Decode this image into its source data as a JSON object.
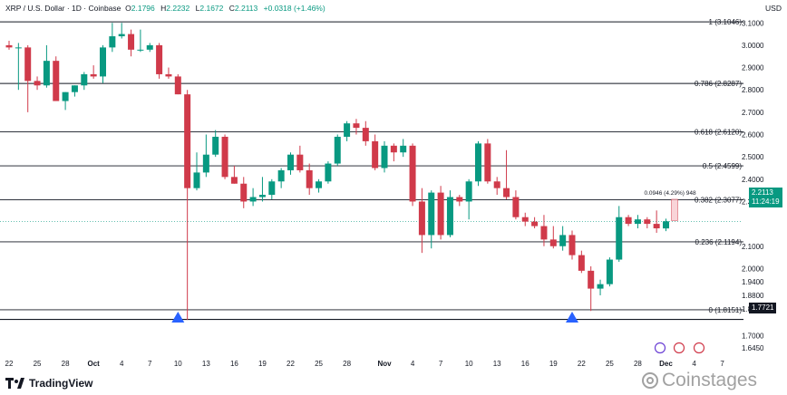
{
  "header": {
    "symbol": "XRP / U.S. Dollar · 1D · Coinbase",
    "open_label": "O",
    "open": "2.1796",
    "high_label": "H",
    "high": "2.2232",
    "low_label": "L",
    "low": "2.1672",
    "close_label": "C",
    "close": "2.2113",
    "change": "+0.0318 (+1.46%)"
  },
  "currency": "USD",
  "brand": "TradingView",
  "watermark": "Coinstages",
  "price_badge": {
    "value": "2.2113",
    "countdown": "11:24:19",
    "color": "#089981"
  },
  "low_badge": "1.7721",
  "measure_label": "0.0946 (4.29%) 948",
  "colors": {
    "up": "#089981",
    "down": "#d03a4a",
    "signal": "#2962ff",
    "fib": "#131722"
  },
  "chart_data": {
    "type": "candlestick",
    "ylim": [
      1.6,
      3.17
    ],
    "price_ticks": [
      "3.1000",
      "3.0000",
      "2.9000",
      "2.8000",
      "2.7000",
      "2.6000",
      "2.5000",
      "2.4000",
      "2.3000",
      "2.1000",
      "2.0000",
      "1.9400",
      "1.8800",
      "1.8200",
      "1.7000",
      "1.6450"
    ],
    "fib_levels": [
      {
        "label": "1 (3.1046)",
        "value": 3.1046
      },
      {
        "label": "0.786 (2.8287)",
        "value": 2.8287
      },
      {
        "label": "0.618 (2.6120)",
        "value": 2.612
      },
      {
        "label": "0.5 (2.4599)",
        "value": 2.4599
      },
      {
        "label": "0.382 (2.3077)",
        "value": 2.3077
      },
      {
        "label": "0.236 (2.1194)",
        "value": 2.1194
      },
      {
        "label": "0 (1.8151)",
        "value": 1.8151
      }
    ],
    "support_line": 1.7721,
    "current_price": 2.2113,
    "x_ticks": [
      {
        "label": "22",
        "index": 0
      },
      {
        "label": "25",
        "index": 3
      },
      {
        "label": "28",
        "index": 6
      },
      {
        "label": "Oct",
        "index": 9
      },
      {
        "label": "4",
        "index": 12
      },
      {
        "label": "7",
        "index": 15
      },
      {
        "label": "10",
        "index": 18
      },
      {
        "label": "13",
        "index": 21
      },
      {
        "label": "16",
        "index": 24
      },
      {
        "label": "19",
        "index": 27
      },
      {
        "label": "22",
        "index": 30
      },
      {
        "label": "25",
        "index": 33
      },
      {
        "label": "28",
        "index": 36
      },
      {
        "label": "Nov",
        "index": 40
      },
      {
        "label": "4",
        "index": 43
      },
      {
        "label": "7",
        "index": 46
      },
      {
        "label": "10",
        "index": 49
      },
      {
        "label": "13",
        "index": 52
      },
      {
        "label": "16",
        "index": 55
      },
      {
        "label": "19",
        "index": 58
      },
      {
        "label": "22",
        "index": 61
      },
      {
        "label": "25",
        "index": 64
      },
      {
        "label": "28",
        "index": 67
      },
      {
        "label": "Dec",
        "index": 70
      },
      {
        "label": "4",
        "index": 73
      },
      {
        "label": "7",
        "index": 76
      }
    ],
    "signals": [
      {
        "index": 18
      },
      {
        "index": 60
      }
    ],
    "candles": [
      {
        "o": 3.0,
        "h": 3.02,
        "l": 2.98,
        "c": 2.99
      },
      {
        "o": 2.99,
        "h": 3.01,
        "l": 2.8,
        "c": 2.99
      },
      {
        "o": 2.99,
        "h": 3.0,
        "l": 2.7,
        "c": 2.84
      },
      {
        "o": 2.84,
        "h": 2.86,
        "l": 2.8,
        "c": 2.82
      },
      {
        "o": 2.82,
        "h": 3.0,
        "l": 2.81,
        "c": 2.93
      },
      {
        "o": 2.93,
        "h": 2.95,
        "l": 2.75,
        "c": 2.75
      },
      {
        "o": 2.75,
        "h": 2.79,
        "l": 2.71,
        "c": 2.79
      },
      {
        "o": 2.79,
        "h": 2.82,
        "l": 2.77,
        "c": 2.82
      },
      {
        "o": 2.82,
        "h": 2.88,
        "l": 2.8,
        "c": 2.87
      },
      {
        "o": 2.87,
        "h": 2.91,
        "l": 2.85,
        "c": 2.86
      },
      {
        "o": 2.86,
        "h": 3.0,
        "l": 2.83,
        "c": 2.99
      },
      {
        "o": 2.99,
        "h": 3.1,
        "l": 2.97,
        "c": 3.04
      },
      {
        "o": 3.04,
        "h": 3.1,
        "l": 3.03,
        "c": 3.05
      },
      {
        "o": 3.05,
        "h": 3.07,
        "l": 2.95,
        "c": 2.98
      },
      {
        "o": 2.98,
        "h": 3.07,
        "l": 2.97,
        "c": 2.98
      },
      {
        "o": 2.98,
        "h": 3.01,
        "l": 2.97,
        "c": 3.0
      },
      {
        "o": 3.0,
        "h": 3.01,
        "l": 2.85,
        "c": 2.87
      },
      {
        "o": 2.87,
        "h": 2.9,
        "l": 2.85,
        "c": 2.86
      },
      {
        "o": 2.86,
        "h": 2.87,
        "l": 2.78,
        "c": 2.78
      },
      {
        "o": 2.78,
        "h": 2.8,
        "l": 1.77,
        "c": 2.36
      },
      {
        "o": 2.36,
        "h": 2.52,
        "l": 2.35,
        "c": 2.43
      },
      {
        "o": 2.43,
        "h": 2.6,
        "l": 2.41,
        "c": 2.51
      },
      {
        "o": 2.51,
        "h": 2.62,
        "l": 2.5,
        "c": 2.59
      },
      {
        "o": 2.59,
        "h": 2.6,
        "l": 2.4,
        "c": 2.41
      },
      {
        "o": 2.41,
        "h": 2.46,
        "l": 2.38,
        "c": 2.38
      },
      {
        "o": 2.38,
        "h": 2.41,
        "l": 2.27,
        "c": 2.3
      },
      {
        "o": 2.3,
        "h": 2.36,
        "l": 2.28,
        "c": 2.32
      },
      {
        "o": 2.32,
        "h": 2.41,
        "l": 2.3,
        "c": 2.33
      },
      {
        "o": 2.33,
        "h": 2.4,
        "l": 2.31,
        "c": 2.39
      },
      {
        "o": 2.39,
        "h": 2.45,
        "l": 2.36,
        "c": 2.44
      },
      {
        "o": 2.44,
        "h": 2.52,
        "l": 2.42,
        "c": 2.51
      },
      {
        "o": 2.51,
        "h": 2.55,
        "l": 2.43,
        "c": 2.44
      },
      {
        "o": 2.44,
        "h": 2.47,
        "l": 2.33,
        "c": 2.36
      },
      {
        "o": 2.36,
        "h": 2.4,
        "l": 2.34,
        "c": 2.39
      },
      {
        "o": 2.39,
        "h": 2.48,
        "l": 2.38,
        "c": 2.47
      },
      {
        "o": 2.47,
        "h": 2.6,
        "l": 2.46,
        "c": 2.59
      },
      {
        "o": 2.59,
        "h": 2.66,
        "l": 2.57,
        "c": 2.65
      },
      {
        "o": 2.65,
        "h": 2.67,
        "l": 2.6,
        "c": 2.63
      },
      {
        "o": 2.63,
        "h": 2.66,
        "l": 2.55,
        "c": 2.57
      },
      {
        "o": 2.57,
        "h": 2.6,
        "l": 2.44,
        "c": 2.45
      },
      {
        "o": 2.45,
        "h": 2.57,
        "l": 2.43,
        "c": 2.55
      },
      {
        "o": 2.55,
        "h": 2.56,
        "l": 2.48,
        "c": 2.52
      },
      {
        "o": 2.52,
        "h": 2.58,
        "l": 2.5,
        "c": 2.55
      },
      {
        "o": 2.55,
        "h": 2.56,
        "l": 2.28,
        "c": 2.3
      },
      {
        "o": 2.3,
        "h": 2.36,
        "l": 2.07,
        "c": 2.15
      },
      {
        "o": 2.15,
        "h": 2.35,
        "l": 2.09,
        "c": 2.34
      },
      {
        "o": 2.34,
        "h": 2.37,
        "l": 2.13,
        "c": 2.15
      },
      {
        "o": 2.15,
        "h": 2.35,
        "l": 2.14,
        "c": 2.32
      },
      {
        "o": 2.32,
        "h": 2.33,
        "l": 2.28,
        "c": 2.3
      },
      {
        "o": 2.3,
        "h": 2.4,
        "l": 2.22,
        "c": 2.39
      },
      {
        "o": 2.39,
        "h": 2.57,
        "l": 2.37,
        "c": 2.56
      },
      {
        "o": 2.56,
        "h": 2.58,
        "l": 2.38,
        "c": 2.39
      },
      {
        "o": 2.39,
        "h": 2.41,
        "l": 2.33,
        "c": 2.36
      },
      {
        "o": 2.36,
        "h": 2.53,
        "l": 2.31,
        "c": 2.32
      },
      {
        "o": 2.32,
        "h": 2.35,
        "l": 2.22,
        "c": 2.23
      },
      {
        "o": 2.23,
        "h": 2.25,
        "l": 2.19,
        "c": 2.21
      },
      {
        "o": 2.21,
        "h": 2.23,
        "l": 2.18,
        "c": 2.19
      },
      {
        "o": 2.19,
        "h": 2.24,
        "l": 2.1,
        "c": 2.13
      },
      {
        "o": 2.13,
        "h": 2.19,
        "l": 2.09,
        "c": 2.1
      },
      {
        "o": 2.1,
        "h": 2.19,
        "l": 2.08,
        "c": 2.15
      },
      {
        "o": 2.15,
        "h": 2.17,
        "l": 2.04,
        "c": 2.06
      },
      {
        "o": 2.06,
        "h": 2.08,
        "l": 1.98,
        "c": 1.99
      },
      {
        "o": 1.99,
        "h": 2.01,
        "l": 1.81,
        "c": 1.91
      },
      {
        "o": 1.91,
        "h": 1.95,
        "l": 1.88,
        "c": 1.93
      },
      {
        "o": 1.93,
        "h": 2.05,
        "l": 1.92,
        "c": 2.04
      },
      {
        "o": 2.04,
        "h": 2.28,
        "l": 2.03,
        "c": 2.23
      },
      {
        "o": 2.23,
        "h": 2.24,
        "l": 2.19,
        "c": 2.2
      },
      {
        "o": 2.2,
        "h": 2.24,
        "l": 2.18,
        "c": 2.22
      },
      {
        "o": 2.22,
        "h": 2.23,
        "l": 2.18,
        "c": 2.2
      },
      {
        "o": 2.2,
        "h": 2.26,
        "l": 2.16,
        "c": 2.18
      },
      {
        "o": 2.1796,
        "h": 2.2232,
        "l": 2.1672,
        "c": 2.2113
      }
    ]
  }
}
